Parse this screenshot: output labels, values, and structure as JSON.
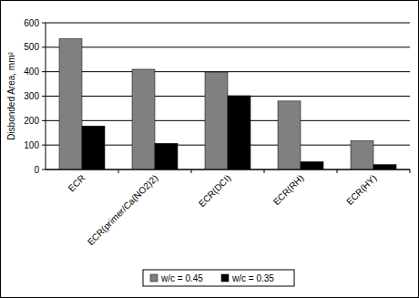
{
  "chart_data": {
    "type": "bar",
    "y_label": "Disbonded Area, mm²",
    "categories": [
      "ECR",
      "ECR(primer/Ca(NO2)2)",
      "ECR(DCI)",
      "ECR(RH)",
      "ECR(HY)"
    ],
    "series": [
      {
        "name": "w/c = 0.45",
        "color": "#808080",
        "values": [
          535,
          410,
          398,
          280,
          118
        ]
      },
      {
        "name": "w/c = 0.35",
        "color": "#000000",
        "values": [
          178,
          107,
          302,
          32,
          20
        ]
      }
    ],
    "ylim": [
      0,
      600
    ],
    "yticks": [
      0,
      100,
      200,
      300,
      400,
      500,
      600
    ],
    "grid": true,
    "legend": "bottom"
  }
}
